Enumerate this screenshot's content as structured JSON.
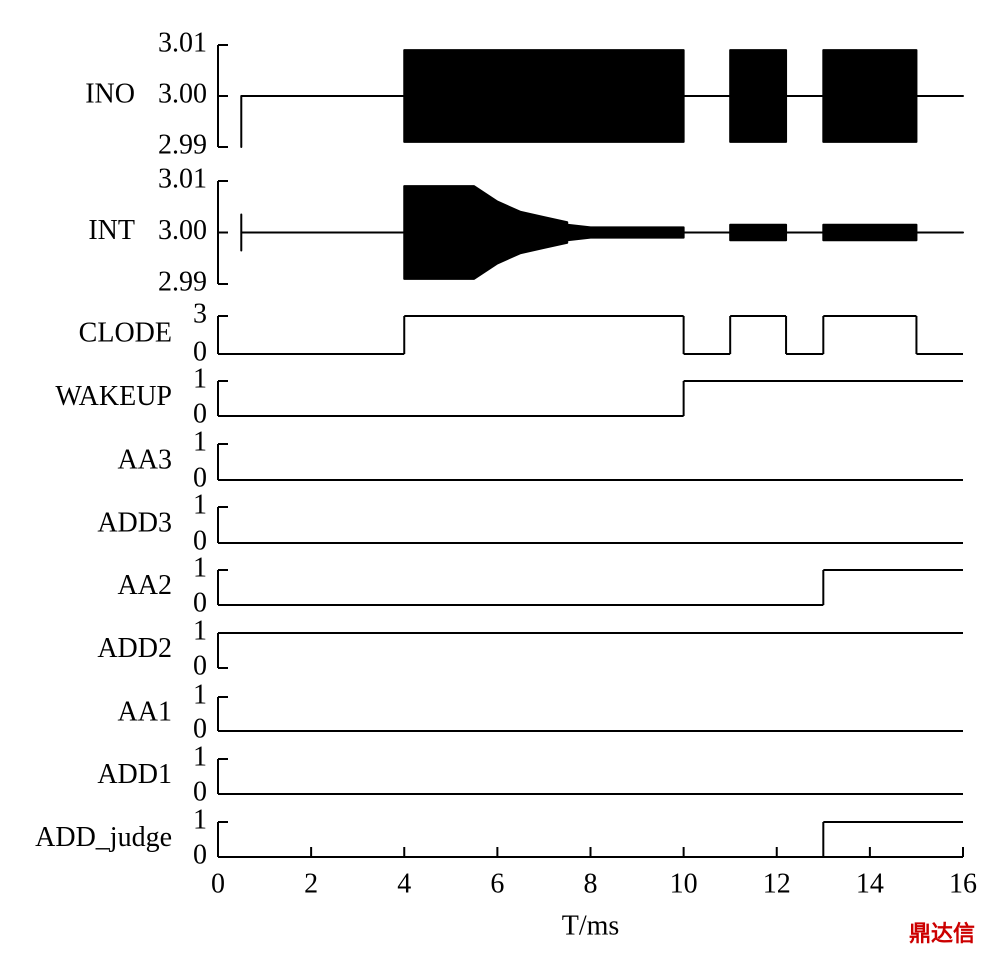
{
  "chart_data": [
    {
      "type": "area",
      "label": "INO",
      "ylim": [
        2.99,
        3.01
      ],
      "yticks": [
        3.01,
        {
          "value": 3,
          "label": "3.00"
        },
        2.99
      ],
      "x": [
        0.5,
        0.5,
        4,
        4,
        10,
        10,
        11,
        11,
        12.2,
        12.2,
        13,
        13,
        15,
        15,
        16
      ],
      "upper": [
        3.0,
        3.0,
        3.0,
        3.009,
        3.009,
        3.0,
        3.0,
        3.009,
        3.009,
        3.0,
        3.0,
        3.009,
        3.009,
        3.0,
        3.0
      ],
      "lower": [
        2.99,
        3.0,
        3.0,
        2.991,
        2.991,
        3.0,
        3.0,
        2.991,
        2.991,
        3.0,
        3.0,
        2.991,
        2.991,
        3.0,
        3.0
      ]
    },
    {
      "type": "area",
      "label": "INT",
      "ylim": [
        2.99,
        3.01
      ],
      "yticks": [
        3.01,
        {
          "value": 3,
          "label": "3.00"
        },
        2.99
      ],
      "x": [
        0.5,
        0.5,
        4,
        4,
        5.5,
        6,
        6.5,
        7,
        7.5,
        7.5,
        8,
        10,
        10,
        11,
        11,
        12.2,
        12.2,
        13,
        13,
        15,
        15,
        16
      ],
      "upper": [
        3.0035,
        3.0,
        3.0,
        3.009,
        3.009,
        3.006,
        3.004,
        3.003,
        3.002,
        3.0015,
        3.001,
        3.001,
        3.0,
        3.0,
        3.0015,
        3.0015,
        3.0,
        3.0,
        3.0015,
        3.0015,
        3.0,
        3.0
      ],
      "lower": [
        2.9965,
        3.0,
        3.0,
        2.991,
        2.991,
        2.994,
        2.996,
        2.997,
        2.998,
        2.9985,
        2.999,
        2.999,
        3.0,
        3.0,
        2.9985,
        2.9985,
        3.0,
        3.0,
        2.9985,
        2.9985,
        3.0,
        3.0
      ]
    },
    {
      "type": "step",
      "label": "CLODE",
      "ylim": [
        0,
        3
      ],
      "yticks": [
        3,
        0
      ],
      "x": [
        0,
        4,
        10,
        11,
        12.2,
        13,
        15,
        16
      ],
      "values": [
        0,
        3,
        0,
        3,
        0,
        3,
        0,
        0
      ]
    },
    {
      "type": "step",
      "label": "WAKEUP",
      "ylim": [
        0,
        1
      ],
      "yticks": [
        1,
        0
      ],
      "x": [
        0,
        10,
        16
      ],
      "values": [
        0,
        1,
        1
      ]
    },
    {
      "type": "step",
      "label": "AA3",
      "ylim": [
        0,
        1
      ],
      "yticks": [
        1,
        0
      ],
      "x": [
        0,
        16
      ],
      "values": [
        0,
        0
      ]
    },
    {
      "type": "step",
      "label": "ADD3",
      "ylim": [
        0,
        1
      ],
      "yticks": [
        1,
        0
      ],
      "x": [
        0,
        16
      ],
      "values": [
        0,
        0
      ]
    },
    {
      "type": "step",
      "label": "AA2",
      "ylim": [
        0,
        1
      ],
      "yticks": [
        1,
        0
      ],
      "x": [
        0,
        13,
        16
      ],
      "values": [
        0,
        1,
        1
      ]
    },
    {
      "type": "step",
      "label": "ADD2",
      "ylim": [
        0,
        1
      ],
      "yticks": [
        1,
        0
      ],
      "x": [
        0,
        16
      ],
      "values": [
        1,
        1
      ]
    },
    {
      "type": "step",
      "label": "AA1",
      "ylim": [
        0,
        1
      ],
      "yticks": [
        1,
        0
      ],
      "x": [
        0,
        16
      ],
      "values": [
        0,
        0
      ]
    },
    {
      "type": "step",
      "label": "ADD1",
      "ylim": [
        0,
        1
      ],
      "yticks": [
        1,
        0
      ],
      "x": [
        0,
        16
      ],
      "values": [
        0,
        0
      ]
    },
    {
      "type": "step",
      "label": "ADD_judge",
      "ylim": [
        0,
        1
      ],
      "yticks": [
        1,
        0
      ],
      "x": [
        0,
        13,
        16
      ],
      "values": [
        0,
        1,
        1
      ],
      "xlim": [
        0,
        16
      ],
      "xticks": [
        0,
        2,
        4,
        6,
        8,
        10,
        12,
        14,
        16
      ],
      "xlabel": "T/ms"
    }
  ],
  "watermark": "鼎达信"
}
